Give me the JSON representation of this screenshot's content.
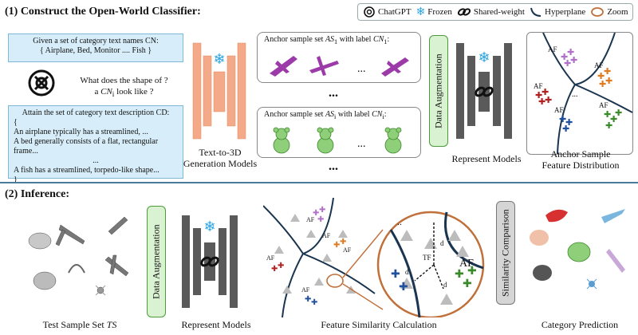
{
  "section1_title": "(1) Construct the Open-World Classifier:",
  "section2_title": "(2) Inference:",
  "legend": {
    "chatgpt": "ChatGPT",
    "frozen": "Frozen",
    "shared": "Shared-weight",
    "hyperplane": "Hyperplane",
    "zoom": "Zoom"
  },
  "given_box": {
    "line1": "Given a set of category text names CN:",
    "line2": "{ Airplane, Bed, Monitor .... Fish }"
  },
  "question": {
    "line1": "What does the shape of ?",
    "line2": "a CN",
    "line2_sub": "i",
    "line2_end": " look like ?"
  },
  "desc_box": {
    "title": "Attain the set of category text description CD:",
    "open": "{",
    "l1": "An airplane typically has a streamlined, ...",
    "l2": "A bed generally consists of a flat, rectangular frame...",
    "l3": "...",
    "l4": "A fish has a streamlined, torpedo-like shape...",
    "close": "}"
  },
  "gen_caption": {
    "l1": "Text-to-3D",
    "l2": "Generation Models"
  },
  "anchor1": {
    "label": "Anchor sample set AS",
    "sub": "1",
    "mid": " with label CN",
    "sub2": "1",
    "end": ":"
  },
  "anchor2": {
    "label": "Anchor sample set AS",
    "sub": "i",
    "mid": " with label CN",
    "sub2": "i",
    "end": ":"
  },
  "ellipsis": "...",
  "data_aug": "Data Augmentation",
  "represent_models": "Represent Models",
  "anchor_dist": {
    "l1": "Anchor Sample",
    "l2": "Feature Distribution"
  },
  "af_labels": {
    "af1": "AF",
    "af2": "AF",
    "af3": "AF",
    "afi": "AF",
    "afnc": "AF"
  },
  "test_set": "Test Sample Set TS",
  "feature_sim": "Feature Similarity Calculation",
  "similarity_cmp": "Similarity Comparison",
  "category_pred": "Category Prediction",
  "zoom_labels": {
    "d1": "d",
    "di": "d",
    "dnc": "d",
    "tf": "TF",
    "afi": "AF"
  },
  "colors": {
    "blue_box": "#d7eefa",
    "orange": "#f4a988",
    "green_box": "#d9f3d2",
    "divider": "#4a7b9d",
    "zoom_ring": "#c0703a",
    "hyperplane": "#1a3550"
  }
}
